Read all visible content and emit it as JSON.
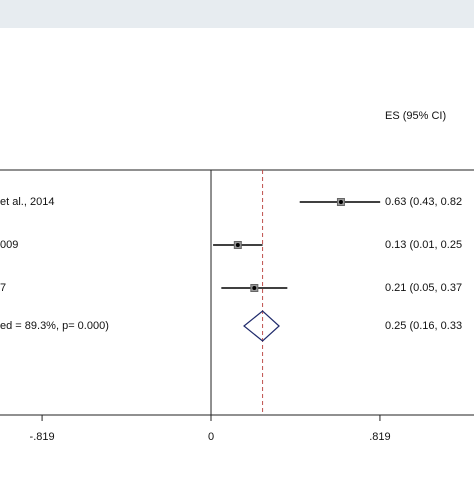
{
  "chart_data": {
    "type": "forest",
    "header": "ES (95% CI)",
    "categories": [
      "et al., 2014",
      "009",
      "7"
    ],
    "values": [
      0.63,
      0.13,
      0.21
    ],
    "lower": [
      0.43,
      0.01,
      0.05
    ],
    "upper": [
      0.82,
      0.25,
      0.37
    ],
    "value_labels": [
      "0.63 (0.43, 0.82",
      "0.13 (0.01, 0.25",
      "0.21 (0.05, 0.37"
    ],
    "overall": {
      "label": "ed = 89.3%, p= 0.000)",
      "value": 0.25,
      "lower": 0.16,
      "upper": 0.33,
      "value_label": "0.25 (0.16, 0.33"
    },
    "xlim": [
      -1.023,
      1.275
    ],
    "xticks": [
      {
        "value": -0.819,
        "label": "-.819"
      },
      0,
      {
        "value": 0.819,
        "label": ".819"
      }
    ]
  }
}
